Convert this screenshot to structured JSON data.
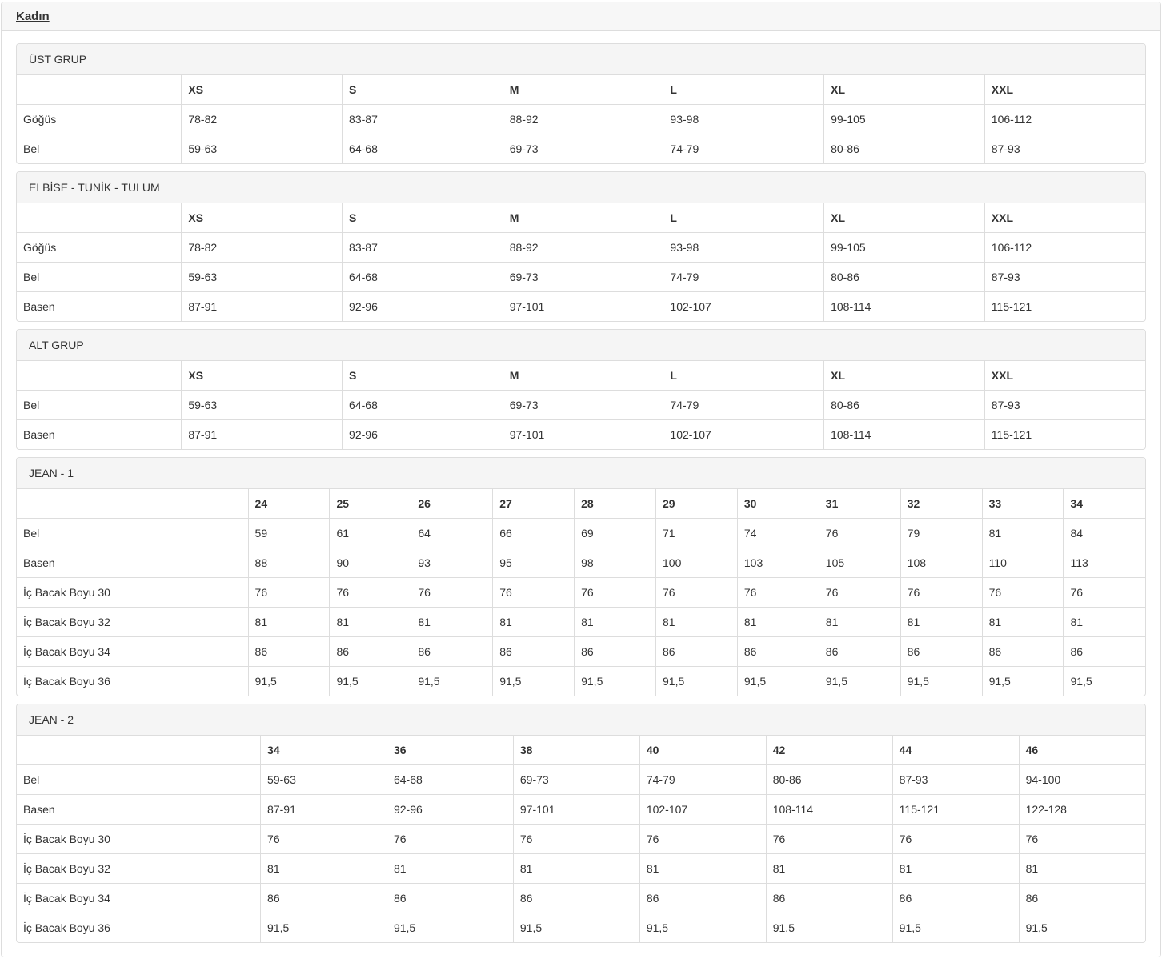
{
  "page_title": "Kadın",
  "colors": {
    "panel_border": "#dddddd",
    "panel_heading_bg": "#f5f5f5",
    "outer_heading_bg": "#f7f7f7",
    "text": "#333333"
  },
  "sections": [
    {
      "title": "ÜST GRUP",
      "columns": [
        "",
        "XS",
        "S",
        "M",
        "L",
        "XL",
        "XXL"
      ],
      "rows": [
        {
          "label": "Göğüs",
          "values": [
            "78-82",
            "83-87",
            "88-92",
            "93-98",
            "99-105",
            "106-112"
          ]
        },
        {
          "label": "Bel",
          "values": [
            "59-63",
            "64-68",
            "69-73",
            "74-79",
            "80-86",
            "87-93"
          ]
        }
      ]
    },
    {
      "title": "ELBİSE - TUNİK - TULUM",
      "columns": [
        "",
        "XS",
        "S",
        "M",
        "L",
        "XL",
        "XXL"
      ],
      "rows": [
        {
          "label": "Göğüs",
          "values": [
            "78-82",
            "83-87",
            "88-92",
            "93-98",
            "99-105",
            "106-112"
          ]
        },
        {
          "label": "Bel",
          "values": [
            "59-63",
            "64-68",
            "69-73",
            "74-79",
            "80-86",
            "87-93"
          ]
        },
        {
          "label": "Basen",
          "values": [
            "87-91",
            "92-96",
            "97-101",
            "102-107",
            "108-114",
            "115-121"
          ]
        }
      ]
    },
    {
      "title": "ALT GRUP",
      "columns": [
        "",
        "XS",
        "S",
        "M",
        "L",
        "XL",
        "XXL"
      ],
      "rows": [
        {
          "label": "Bel",
          "values": [
            "59-63",
            "64-68",
            "69-73",
            "74-79",
            "80-86",
            "87-93"
          ]
        },
        {
          "label": "Basen",
          "values": [
            "87-91",
            "92-96",
            "97-101",
            "102-107",
            "108-114",
            "115-121"
          ]
        }
      ]
    },
    {
      "title": "JEAN - 1",
      "columns": [
        "",
        "24",
        "25",
        "26",
        "27",
        "28",
        "29",
        "30",
        "31",
        "32",
        "33",
        "34"
      ],
      "rows": [
        {
          "label": "Bel",
          "values": [
            "59",
            "61",
            "64",
            "66",
            "69",
            "71",
            "74",
            "76",
            "79",
            "81",
            "84"
          ]
        },
        {
          "label": "Basen",
          "values": [
            "88",
            "90",
            "93",
            "95",
            "98",
            "100",
            "103",
            "105",
            "108",
            "110",
            "113"
          ]
        },
        {
          "label": "İç Bacak Boyu 30",
          "values": [
            "76",
            "76",
            "76",
            "76",
            "76",
            "76",
            "76",
            "76",
            "76",
            "76",
            "76"
          ]
        },
        {
          "label": "İç Bacak Boyu 32",
          "values": [
            "81",
            "81",
            "81",
            "81",
            "81",
            "81",
            "81",
            "81",
            "81",
            "81",
            "81"
          ]
        },
        {
          "label": "İç Bacak Boyu 34",
          "values": [
            "86",
            "86",
            "86",
            "86",
            "86",
            "86",
            "86",
            "86",
            "86",
            "86",
            "86"
          ]
        },
        {
          "label": "İç Bacak Boyu 36",
          "values": [
            "91,5",
            "91,5",
            "91,5",
            "91,5",
            "91,5",
            "91,5",
            "91,5",
            "91,5",
            "91,5",
            "91,5",
            "91,5"
          ]
        }
      ]
    },
    {
      "title": "JEAN - 2",
      "columns": [
        "",
        "34",
        "36",
        "38",
        "40",
        "42",
        "44",
        "46"
      ],
      "rows": [
        {
          "label": "Bel",
          "values": [
            "59-63",
            "64-68",
            "69-73",
            "74-79",
            "80-86",
            "87-93",
            "94-100"
          ]
        },
        {
          "label": "Basen",
          "values": [
            "87-91",
            "92-96",
            "97-101",
            "102-107",
            "108-114",
            "115-121",
            "122-128"
          ]
        },
        {
          "label": "İç Bacak Boyu 30",
          "values": [
            "76",
            "76",
            "76",
            "76",
            "76",
            "76",
            "76"
          ]
        },
        {
          "label": "İç Bacak Boyu 32",
          "values": [
            "81",
            "81",
            "81",
            "81",
            "81",
            "81",
            "81"
          ]
        },
        {
          "label": "İç Bacak Boyu 34",
          "values": [
            "86",
            "86",
            "86",
            "86",
            "86",
            "86",
            "86"
          ]
        },
        {
          "label": "İç Bacak Boyu 36",
          "values": [
            "91,5",
            "91,5",
            "91,5",
            "91,5",
            "91,5",
            "91,5",
            "91,5"
          ]
        }
      ]
    }
  ]
}
